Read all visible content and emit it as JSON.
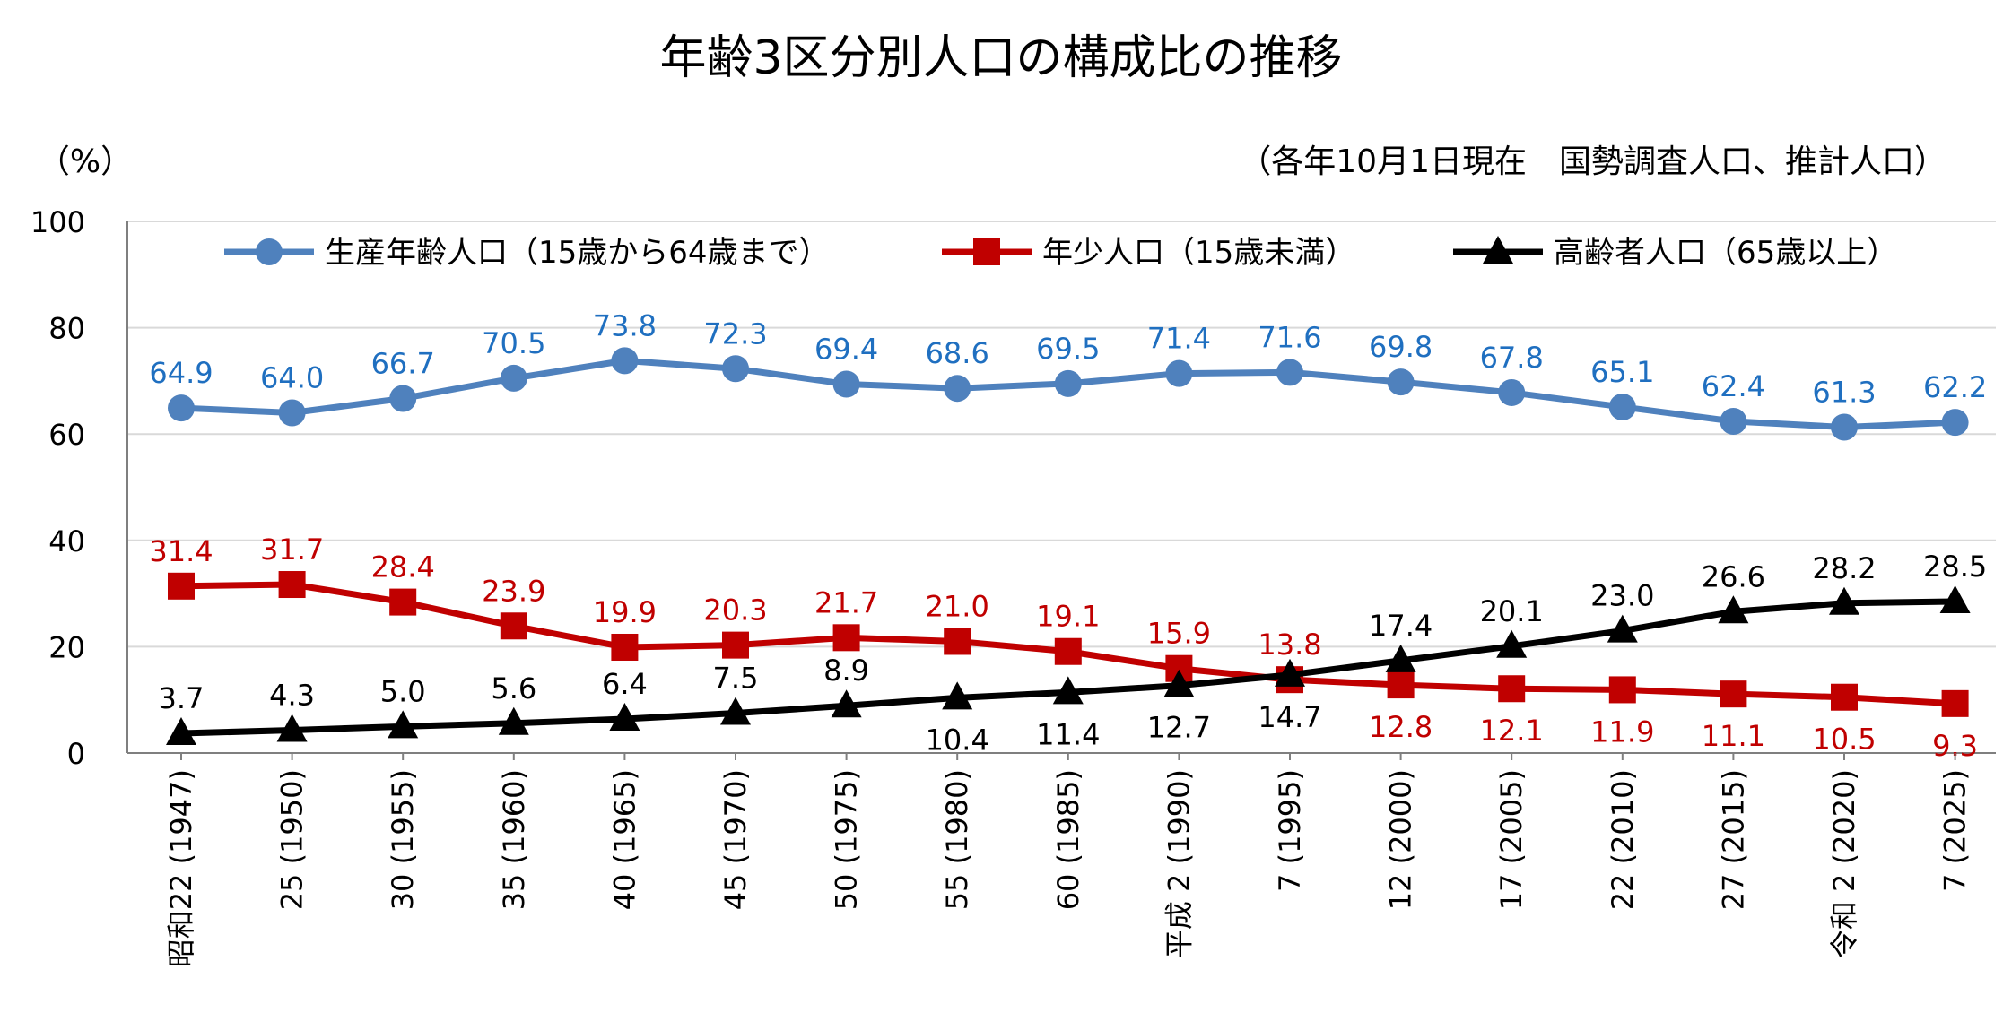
{
  "chart_data": {
    "type": "line",
    "title": "年齢3区分別人口の構成比の推移",
    "subtitle": "（各年10月1日現在　国勢調査人口、推計人口）",
    "yunit": "（%）",
    "ylim": [
      0,
      100
    ],
    "yticks": [
      "0",
      "20",
      "40",
      "60",
      "80",
      "100"
    ],
    "grid": true,
    "legend_position": "top",
    "categories": [
      "昭和22 (1947)",
      "25 (1950)",
      "30 (1955)",
      "35 (1960)",
      "40 (1965)",
      "45 (1970)",
      "50 (1975)",
      "55 (1980)",
      "60 (1985)",
      "平成 2 (1990)",
      "7 (1995)",
      "12 (2000)",
      "17 (2005)",
      "22 (2010)",
      "27 (2015)",
      "令和 2 (2020)",
      "7 (2025)"
    ],
    "series": [
      {
        "name": "生産年齢人口（15歳から64歳まで）",
        "color": "#4f81bd",
        "label_color": "#1f6fc0",
        "marker": "circle",
        "values": [
          64.9,
          64.0,
          66.7,
          70.5,
          73.8,
          72.3,
          69.4,
          68.6,
          69.5,
          71.4,
          71.6,
          69.8,
          67.8,
          65.1,
          62.4,
          61.3,
          62.2
        ],
        "labels": [
          "64.9",
          "64.0",
          "66.7",
          "70.5",
          "73.8",
          "72.3",
          "69.4",
          "68.6",
          "69.5",
          "71.4",
          "71.6",
          "69.8",
          "67.8",
          "65.1",
          "62.4",
          "61.3",
          "62.2"
        ],
        "label_side": [
          "above",
          "above",
          "above",
          "above",
          "above",
          "above",
          "above",
          "above",
          "above",
          "above",
          "above",
          "above",
          "above",
          "above",
          "above",
          "above",
          "above"
        ]
      },
      {
        "name": "年少人口（15歳未満）",
        "color": "#c00000",
        "label_color": "#c00000",
        "marker": "square",
        "values": [
          31.4,
          31.7,
          28.4,
          23.9,
          19.9,
          20.3,
          21.7,
          21.0,
          19.1,
          15.9,
          13.8,
          12.8,
          12.1,
          11.9,
          11.1,
          10.5,
          9.3
        ],
        "labels": [
          "31.4",
          "31.7",
          "28.4",
          "23.9",
          "19.9",
          "20.3",
          "21.7",
          "21.0",
          "19.1",
          "15.9",
          "13.8",
          "12.8",
          "12.1",
          "11.9",
          "11.1",
          "10.5",
          "9.3"
        ],
        "label_side": [
          "above",
          "above",
          "above",
          "above",
          "above",
          "above",
          "above",
          "above",
          "above",
          "above",
          "above",
          "below",
          "below",
          "below",
          "below",
          "below",
          "below"
        ]
      },
      {
        "name": "高齢者人口（65歳以上）",
        "color": "#000000",
        "label_color": "#000000",
        "marker": "triangle",
        "values": [
          3.7,
          4.3,
          5.0,
          5.6,
          6.4,
          7.5,
          8.9,
          10.4,
          11.4,
          12.7,
          14.7,
          17.4,
          20.1,
          23.0,
          26.6,
          28.2,
          28.5
        ],
        "labels": [
          "3.7",
          "4.3",
          "5.0",
          "5.6",
          "6.4",
          "7.5",
          "8.9",
          "10.4",
          "11.4",
          "12.7",
          "14.7",
          "17.4",
          "20.1",
          "23.0",
          "26.6",
          "28.2",
          "28.5"
        ],
        "label_side": [
          "above",
          "above",
          "above",
          "above",
          "above",
          "above",
          "above",
          "below",
          "below",
          "below",
          "below",
          "above",
          "above",
          "above",
          "above",
          "above",
          "above"
        ]
      }
    ]
  }
}
